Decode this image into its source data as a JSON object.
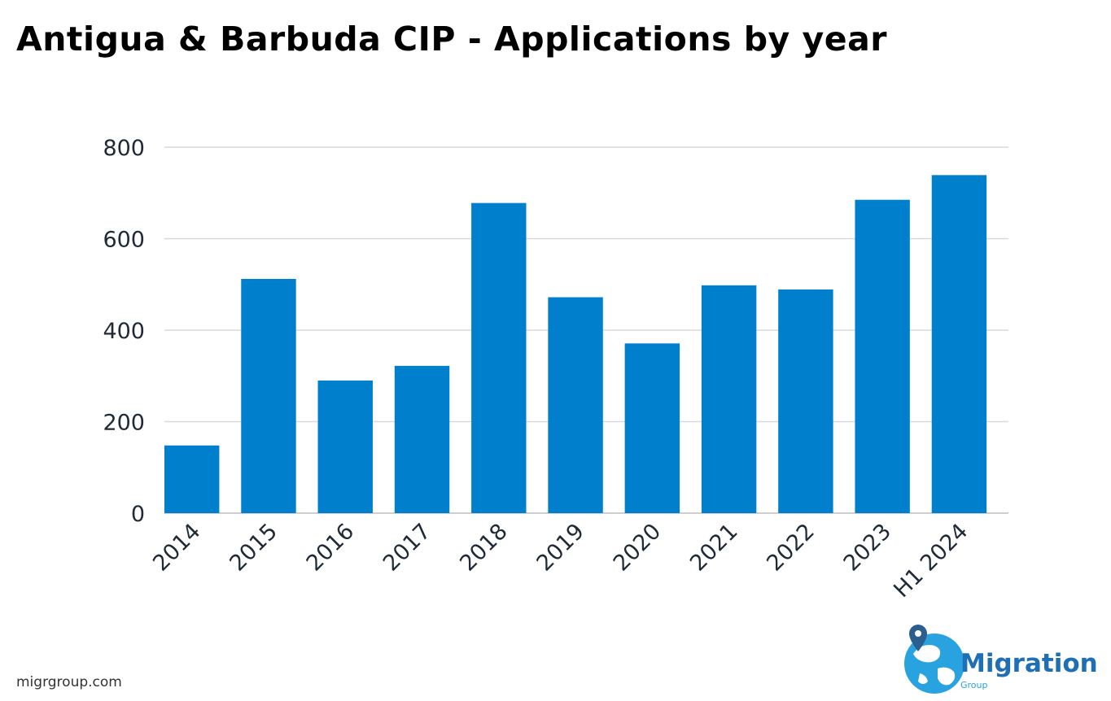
{
  "title": "Antigua & Barbuda CIP - Applications by year",
  "footer": {
    "url": "migrgroup.com"
  },
  "logo": {
    "word": "Migration",
    "sub": "Group",
    "color": "#1e6fb4",
    "accent": "#29a3df"
  },
  "colors": {
    "bar": "#0080cc",
    "grid": "#d9d9d9",
    "axis": "#cfcfcf",
    "tick_text": "#1f2a36"
  },
  "chart_data": {
    "type": "bar",
    "title": "Antigua & Barbuda CIP - Applications by year",
    "xlabel": "",
    "ylabel": "",
    "categories": [
      "2014",
      "2015",
      "2016",
      "2017",
      "2018",
      "2019",
      "2020",
      "2021",
      "2022",
      "2023",
      "H1 2024"
    ],
    "values": [
      148,
      512,
      290,
      322,
      678,
      472,
      371,
      498,
      489,
      685,
      739
    ],
    "ylim": [
      0,
      800
    ],
    "yticks": [
      "0",
      "200",
      "400",
      "600",
      "800"
    ],
    "grid": true,
    "legend": "none"
  }
}
